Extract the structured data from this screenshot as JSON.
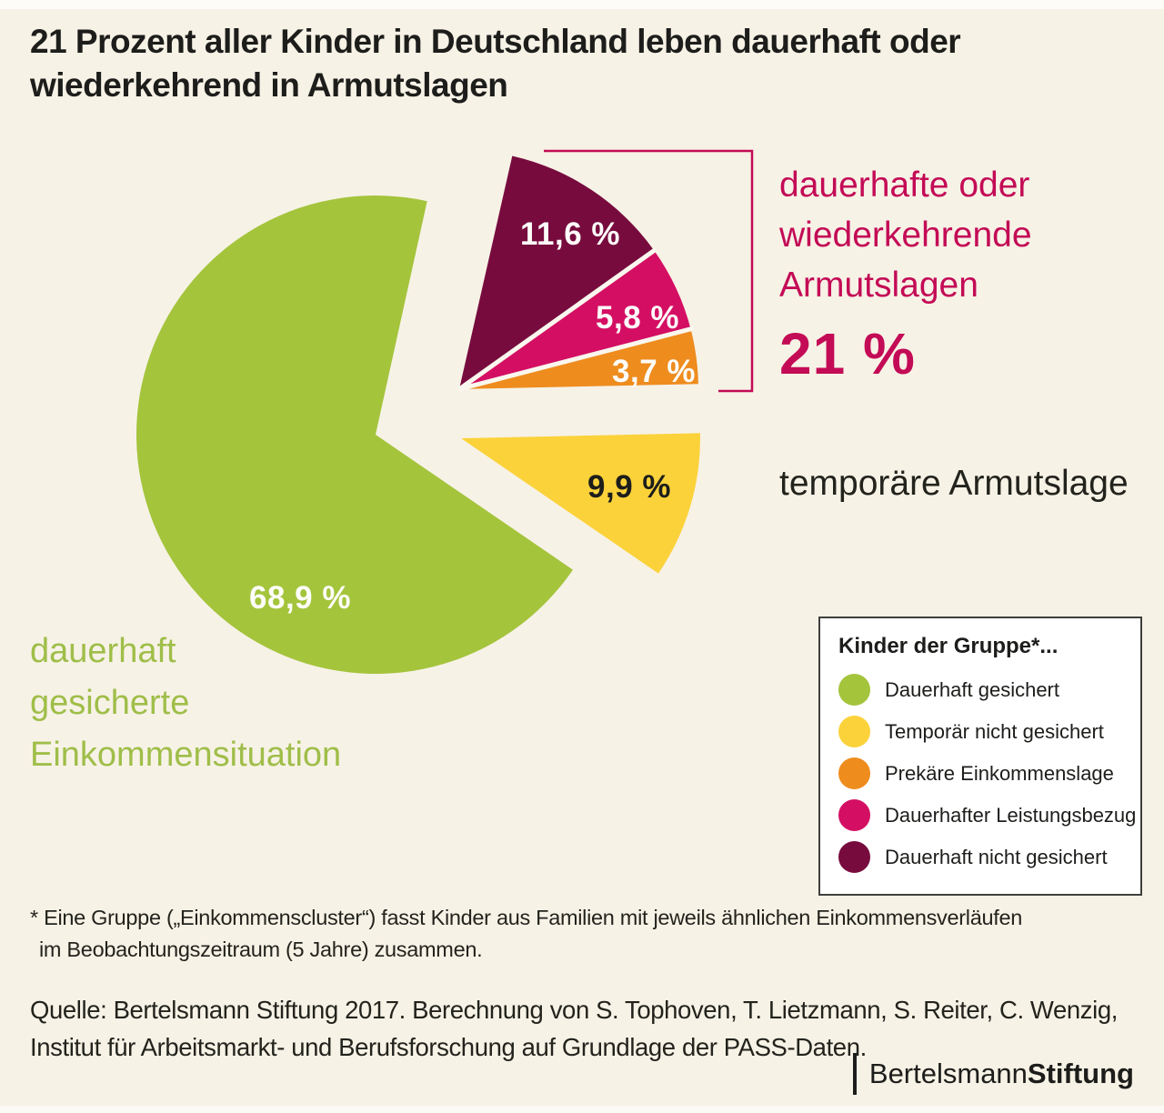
{
  "page": {
    "background": "#f7f2e6"
  },
  "title": {
    "text": "21 Prozent aller Kinder in Deutschland leben dauerhaft oder wiederkehrend in Armutslagen"
  },
  "chart_data": {
    "type": "pie",
    "unit": "percent",
    "start_angle_deg": 77.2,
    "direction": "clockwise",
    "slices": [
      {
        "label": "Dauerhaft nicht gesichert",
        "value": 11.6,
        "display": "11,6 %",
        "color": "#770b3e"
      },
      {
        "label": "Dauerhafter Leistungsbezug",
        "value": 5.8,
        "display": "5,8 %",
        "color": "#d40f63"
      },
      {
        "label": "Prekäre Einkommenslage",
        "value": 3.7,
        "display": "3,7 %",
        "color": "#ee8c1e"
      },
      {
        "label": "Temporär nicht gesichert",
        "value": 9.9,
        "display": "9,9 %",
        "color": "#fbd23a"
      },
      {
        "label": "Dauerhaft gesichert",
        "value": 68.9,
        "display": "68,9 %",
        "color": "#a4c43c"
      }
    ],
    "annotations": {
      "poverty_group": {
        "lines": [
          "dauerhafte oder",
          "wiederkehrende",
          "Armutslagen"
        ],
        "value": "21 %",
        "color": "#c30b56"
      },
      "temporary": {
        "text": "temporäre Armutslage"
      },
      "secure": {
        "lines": [
          "dauerhaft",
          "gesicherte",
          "Einkommensituation"
        ],
        "color": "#9fbe49"
      }
    }
  },
  "legend": {
    "title": "Kinder der Gruppe*...",
    "items": [
      {
        "label": "Dauerhaft gesichert",
        "color": "#a4c43c"
      },
      {
        "label": "Temporär nicht gesichert",
        "color": "#fbd23a"
      },
      {
        "label": "Prekäre Einkommenslage",
        "color": "#ee8c1e"
      },
      {
        "label": "Dauerhafter Leistungsbezug",
        "color": "#d40f63"
      },
      {
        "label": "Dauerhaft nicht gesichert",
        "color": "#770b3e"
      }
    ]
  },
  "footnote": {
    "lines": [
      "* Eine Gruppe („Einkommenscluster“) fasst Kinder aus Familien mit jeweils ähnlichen Einkommensverläufen",
      "im Beobachtungszeitraum (5 Jahre) zusammen."
    ]
  },
  "source": {
    "lines": [
      "Quelle: Bertelsmann Stiftung 2017. Berechnung von S. Tophoven, T. Lietzmann, S. Reiter, C. Wenzig,",
      "Institut für Arbeitsmarkt- und Berufsforschung auf Grundlage der PASS-Daten."
    ]
  },
  "logo": {
    "name_regular": "Bertelsmann",
    "name_bold": "Stiftung"
  }
}
